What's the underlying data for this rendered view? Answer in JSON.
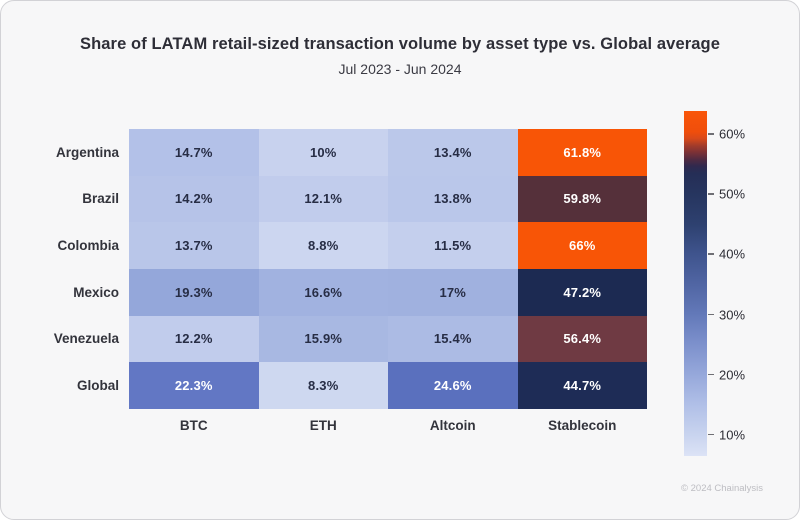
{
  "chart_data": {
    "type": "heatmap",
    "title": "Share of LATAM retail-sized transaction volume by asset type vs. Global average",
    "subtitle": "Jul 2023 - Jun 2024",
    "columns": [
      "BTC",
      "ETH",
      "Altcoin",
      "Stablecoin"
    ],
    "rows": [
      "Argentina",
      "Brazil",
      "Colombia",
      "Mexico",
      "Venezuela",
      "Global"
    ],
    "values": [
      [
        14.7,
        10,
        13.4,
        61.8
      ],
      [
        14.2,
        12.1,
        13.8,
        59.8
      ],
      [
        13.7,
        8.8,
        11.5,
        66
      ],
      [
        19.3,
        16.6,
        17,
        47.2
      ],
      [
        12.2,
        15.9,
        15.4,
        56.4
      ],
      [
        22.3,
        8.3,
        24.6,
        44.7
      ]
    ],
    "labels": [
      [
        "14.7%",
        "10%",
        "13.4%",
        "61.8%"
      ],
      [
        "14.2%",
        "12.1%",
        "13.8%",
        "59.8%"
      ],
      [
        "13.7%",
        "8.8%",
        "11.5%",
        "66%"
      ],
      [
        "19.3%",
        "16.6%",
        "17%",
        "47.2%"
      ],
      [
        "12.2%",
        "15.9%",
        "15.4%",
        "56.4%"
      ],
      [
        "22.3%",
        "8.3%",
        "24.6%",
        "44.7%"
      ]
    ],
    "cell_colors": [
      [
        "#b3c1e8",
        "#c8d2ee",
        "#bbc8ea",
        "#f85506"
      ],
      [
        "#b6c3e8",
        "#c1ccec",
        "#bac7ea",
        "#55303a"
      ],
      [
        "#b9c6e9",
        "#ccd6f0",
        "#c4cfed",
        "#f85506"
      ],
      [
        "#94a7da",
        "#a1b2e0",
        "#a0b1df",
        "#1c2a52"
      ],
      [
        "#c1ccec",
        "#a8b8e2",
        "#acbbe4",
        "#6f3a43"
      ],
      [
        "#6277c4",
        "#ced8f0",
        "#5a70be",
        "#1e2c56"
      ]
    ],
    "text_dark": "#272d45",
    "text_light": "#ffffff",
    "colorbar": {
      "position": "right",
      "domain": [
        6.3,
        63.7
      ],
      "tick_values": [
        60,
        50,
        40,
        30,
        20,
        10
      ],
      "tick_labels": [
        "60%",
        "50%",
        "40%",
        "30%",
        "20%",
        "10%"
      ],
      "gradient": [
        {
          "pos": 0.0,
          "color": "#f9560a"
        },
        {
          "pos": 0.06,
          "color": "#f04e0b"
        },
        {
          "pos": 0.08,
          "color": "#d8491a"
        },
        {
          "pos": 0.1,
          "color": "#a33c2a"
        },
        {
          "pos": 0.12,
          "color": "#7b3136"
        },
        {
          "pos": 0.14,
          "color": "#512a41"
        },
        {
          "pos": 0.16,
          "color": "#30294e"
        },
        {
          "pos": 0.18,
          "color": "#252e56"
        },
        {
          "pos": 0.24,
          "color": "#26355f"
        },
        {
          "pos": 0.33,
          "color": "#2e4170"
        },
        {
          "pos": 0.41,
          "color": "#3e538c"
        },
        {
          "pos": 0.5,
          "color": "#5065a3"
        },
        {
          "pos": 0.59,
          "color": "#6379b9"
        },
        {
          "pos": 0.67,
          "color": "#7b8fcb"
        },
        {
          "pos": 0.76,
          "color": "#95a7da"
        },
        {
          "pos": 0.85,
          "color": "#b0bfe7"
        },
        {
          "pos": 0.94,
          "color": "#c9d4ef"
        },
        {
          "pos": 1.0,
          "color": "#dce3f6"
        }
      ]
    }
  },
  "footer": {
    "copyright": "© 2024 Chainalysis"
  }
}
